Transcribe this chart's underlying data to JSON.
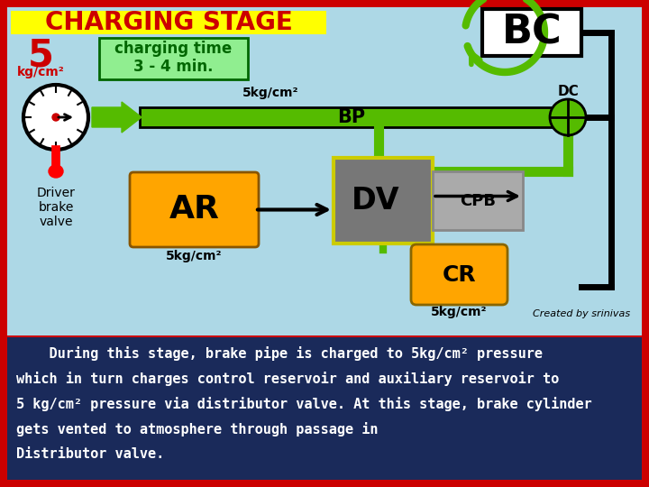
{
  "title": "CHARGING STAGE",
  "title_bg": "#FFFF00",
  "title_color": "#CC0000",
  "main_bg": "#ADD8E6",
  "border_color": "#CC0000",
  "bottom_text_line1": "    During this stage, brake pipe is charged to 5kg/cm² pressure",
  "bottom_text_line2": "which in turn charges control reservoir and auxiliary reservoir to",
  "bottom_text_line3": "5 kg/cm² pressure via distributor valve. At this stage, brake cylinder",
  "bottom_text_line4": "gets vented to atmosphere through passage in",
  "bottom_text_line5": "Distributor valve.",
  "charging_time": "charging time\n3 - 4 min.",
  "bp_label": "BP",
  "dc_label": "DC",
  "bc_label": "BC",
  "ar_label": "AR",
  "dv_label": "DV",
  "cpb_label": "CPB",
  "cr_label": "CR",
  "driver_label": "Driver\nbrake\nvalve",
  "five_kg_bp": "5kg/cm²",
  "five_kg_ar": "5kg/cm²",
  "five_kg_cr": "5kg/cm²",
  "created_by": "Created by srinivas",
  "green_color": "#55BB00",
  "orange_color": "#FFA500",
  "dark_gray": "#777777",
  "light_gray": "#AAAAAA"
}
